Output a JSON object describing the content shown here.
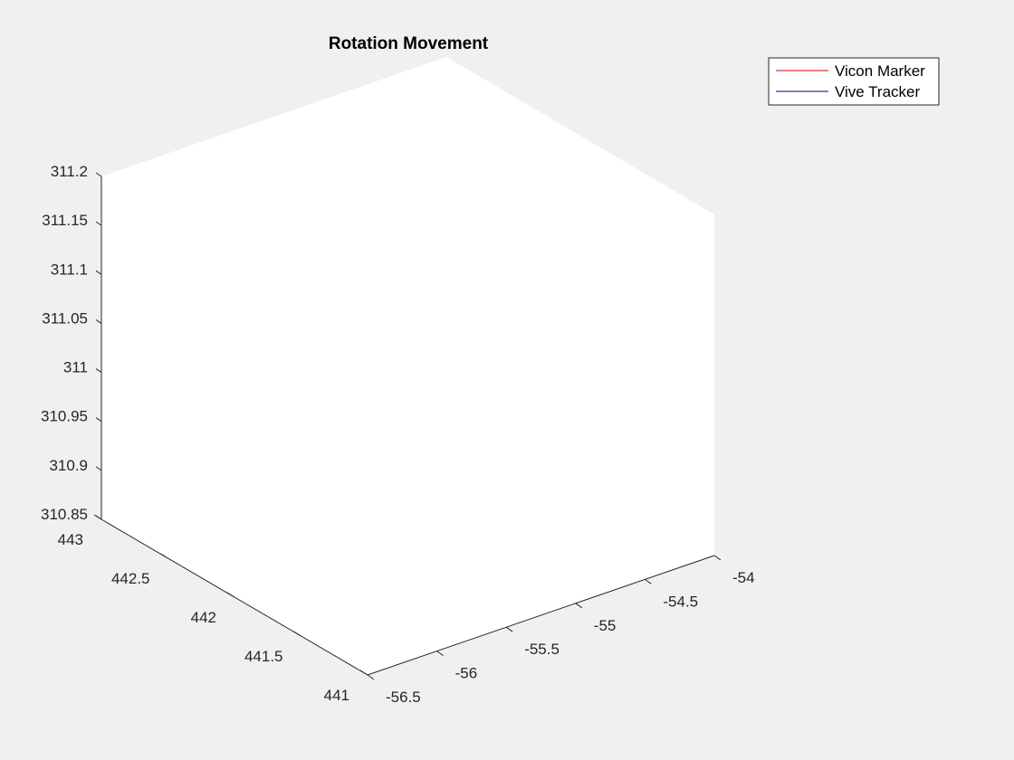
{
  "chart_data": {
    "type": "line",
    "title": "Rotation Movement",
    "view": "3d",
    "xlabel": "",
    "ylabel": "",
    "zlabel": "",
    "x_axis": {
      "lim": [
        -56.5,
        -54
      ],
      "ticks": [
        -56.5,
        -56,
        -55.5,
        -55,
        -54.5,
        -54
      ],
      "tick_labels": [
        "-56.5",
        "-56",
        "-55.5",
        "-55",
        "-54.5",
        "-54"
      ]
    },
    "y_axis": {
      "lim": [
        441,
        443
      ],
      "ticks": [
        441,
        441.5,
        442,
        442.5,
        443
      ],
      "tick_labels": [
        "441",
        "441.5",
        "442",
        "442.5",
        "443"
      ]
    },
    "z_axis": {
      "lim": [
        310.85,
        311.2
      ],
      "ticks": [
        310.85,
        310.9,
        310.95,
        311,
        311.05,
        311.1,
        311.15,
        311.2
      ],
      "tick_labels": [
        "310.85",
        "310.9",
        "310.95",
        "311",
        "311.05",
        "311.1",
        "311.15",
        "311.2"
      ]
    },
    "legend_position": "top-right",
    "grid": false,
    "series": [
      {
        "name": "Vicon Marker",
        "color": "#cc0000",
        "points": []
      },
      {
        "name": "Vive Tracker",
        "color": "#000080",
        "points": []
      }
    ]
  }
}
